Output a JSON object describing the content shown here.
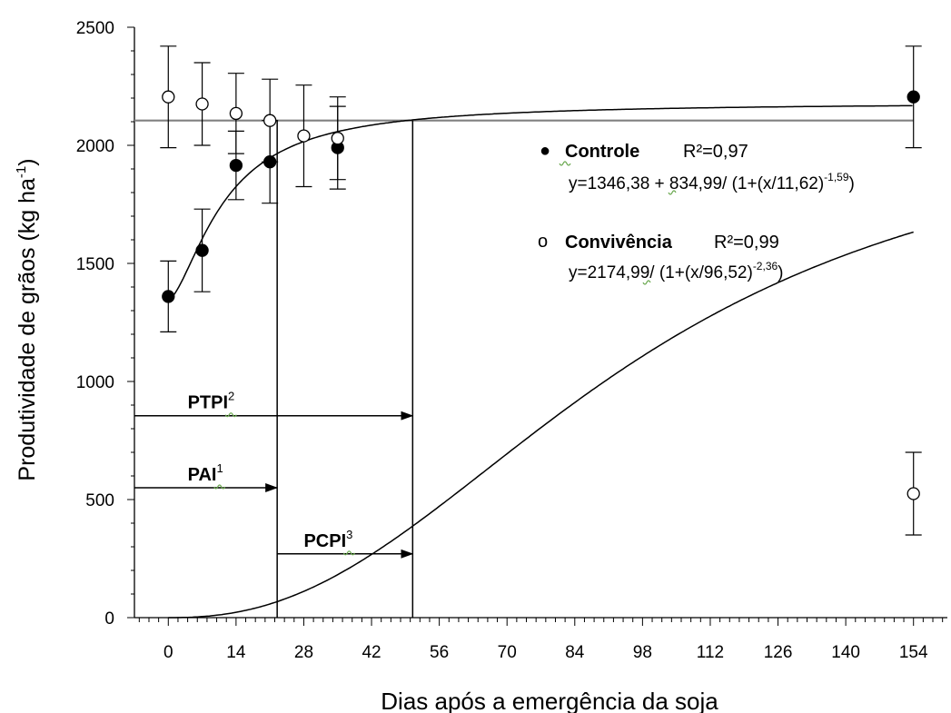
{
  "chart_data": {
    "type": "scatter",
    "title": "",
    "xlabel": "Dias após a emergência da soja",
    "ylabel": "Produtividade de grãos (kg ha-1)",
    "xlim": [
      -7,
      161
    ],
    "ylim": [
      0,
      2500
    ],
    "x_ticks": [
      0,
      14,
      28,
      42,
      56,
      70,
      84,
      98,
      112,
      126,
      140,
      154
    ],
    "y_ticks": [
      0,
      500,
      1000,
      1500,
      2000,
      2500
    ],
    "grid": false,
    "legend_position": "right",
    "series": [
      {
        "name": "Controle",
        "marker": "filled-circle",
        "r2": "R²=0,97",
        "equation": "y=1346,38 + 834,99/ (1+(x/11,62)-1,59)",
        "points": [
          {
            "x": 0,
            "y": 1360,
            "err": 150
          },
          {
            "x": 7,
            "y": 1555,
            "err": 175
          },
          {
            "x": 14,
            "y": 1915,
            "err": 145
          },
          {
            "x": 21,
            "y": 1930,
            "err": 175
          },
          {
            "x": 35,
            "y": 1990,
            "err": 175
          },
          {
            "x": 154,
            "y": 2205,
            "err": 215
          }
        ],
        "fit": {
          "a": 1346.38,
          "b": 834.99,
          "c": 11.62,
          "d": -1.59
        }
      },
      {
        "name": "Convivência",
        "marker": "open-circle",
        "r2": "R²=0,99",
        "equation": "y=2174,99/ (1+(x/96,52)-2,36)",
        "points": [
          {
            "x": 0,
            "y": 2205,
            "err": 215
          },
          {
            "x": 7,
            "y": 2175,
            "err": 175
          },
          {
            "x": 14,
            "y": 2135,
            "err": 170
          },
          {
            "x": 21,
            "y": 2105,
            "err": 175
          },
          {
            "x": 28,
            "y": 2040,
            "err": 215
          },
          {
            "x": 35,
            "y": 2030,
            "err": 175
          },
          {
            "x": 154,
            "y": 525,
            "err": 175
          }
        ],
        "fit": {
          "a": 2174.99,
          "c": 96.52,
          "d": -2.36
        }
      }
    ],
    "reference_line_y": 2105,
    "vertical_lines_x": [
      22.5,
      50.5
    ],
    "periods": [
      {
        "label": "PTPI",
        "sup": "2",
        "x_start": -7,
        "x_end": 50.5,
        "y": 855
      },
      {
        "label": "PAI",
        "sup": "1",
        "x_start": -7,
        "x_end": 22.5,
        "y": 550
      },
      {
        "label": "PCPI",
        "sup": "3",
        "x_start": 22.5,
        "x_end": 50.5,
        "y": 270
      }
    ],
    "legend": {
      "controle": {
        "marker": "●",
        "name": "Controle",
        "r2": "R²=0,97",
        "eq_main": "y=1346,38 + 834,99/  (1+(x/11,62)",
        "eq_exp": "-1,59",
        "eq_end": ")"
      },
      "convivencia": {
        "marker": "o",
        "name": "Convivência",
        "r2": "R²=0,99",
        "eq_main": "y=2174,99/  (1+(x/96,52)",
        "eq_exp": "-2,36",
        "eq_end": ")"
      }
    },
    "ylabel_parts": {
      "main": "Produtividade de grãos (kg ha",
      "sup": "-1",
      "end": ")"
    },
    "colors": {
      "axis": "#000000",
      "fit_line": "#000000",
      "reference_line": "#808080",
      "squiggle": "#6aa84f"
    }
  }
}
